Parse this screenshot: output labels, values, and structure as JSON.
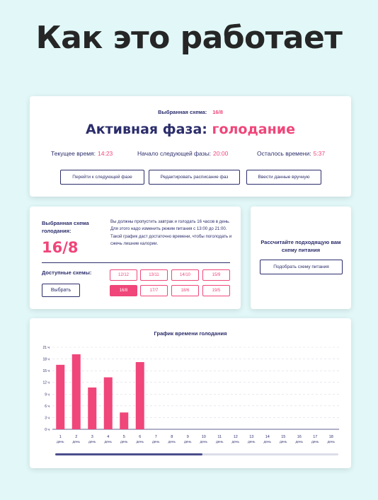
{
  "hero_title": "Как это работает",
  "active": {
    "selected_label": "Выбранная схема:",
    "selected_value": "16/8",
    "phase_label": "Активная фаза:",
    "phase_value": "голодание",
    "current_time_label": "Текущее время:",
    "current_time": "14:23",
    "next_phase_label": "Начало следующей фазы:",
    "next_phase": "20:00",
    "remaining_label": "Осталось времени:",
    "remaining": "5:37",
    "buttons": [
      "Перейти к следующей фазе",
      "Редактировать расписание фаз",
      "Ввести данные вручную"
    ]
  },
  "scheme": {
    "title": "Выбранная схема голодания:",
    "value": "16/8",
    "description": "Вы должны пропустить завтрак и голодать 16 часов в день. Для этого надо изменить режим питания с 13:00 до 21:00. Такой график даст достаточно времени, чтобы поголодать и сжечь лишние калории.",
    "available_label": "Доступные схемы:",
    "choose_button": "Выбрать",
    "options": [
      "12/12",
      "13/11",
      "14/10",
      "15/9",
      "16/8",
      "17/7",
      "18/6",
      "19/5"
    ],
    "active_option": "16/8"
  },
  "calc": {
    "text": "Рассчитайте подходящую вам схему питания",
    "button": "Подобрать схему питания"
  },
  "chart_data": {
    "type": "bar",
    "title": "График времени голодания",
    "categories": [
      "1",
      "2",
      "3",
      "4",
      "5",
      "6",
      "7",
      "8",
      "9",
      "10",
      "11",
      "12",
      "13",
      "14",
      "15",
      "16",
      "17",
      "18"
    ],
    "category_sub": "день",
    "values": [
      16.5,
      19.2,
      10.7,
      13.3,
      4.3,
      17.2,
      null,
      null,
      null,
      null,
      null,
      null,
      null,
      null,
      null,
      null,
      null,
      null
    ],
    "y_ticks": [
      "0 ч",
      "3 ч",
      "6 ч",
      "9 ч",
      "12 ч",
      "15 ч",
      "18 ч",
      "21 ч"
    ],
    "ylim": [
      0,
      21
    ],
    "grid": true,
    "bar_color": "#f0467a",
    "scroll_fraction": 0.52
  },
  "colors": {
    "accent": "#f0467a",
    "navy": "#2b2d6b",
    "bg": "#e2f8f8"
  }
}
